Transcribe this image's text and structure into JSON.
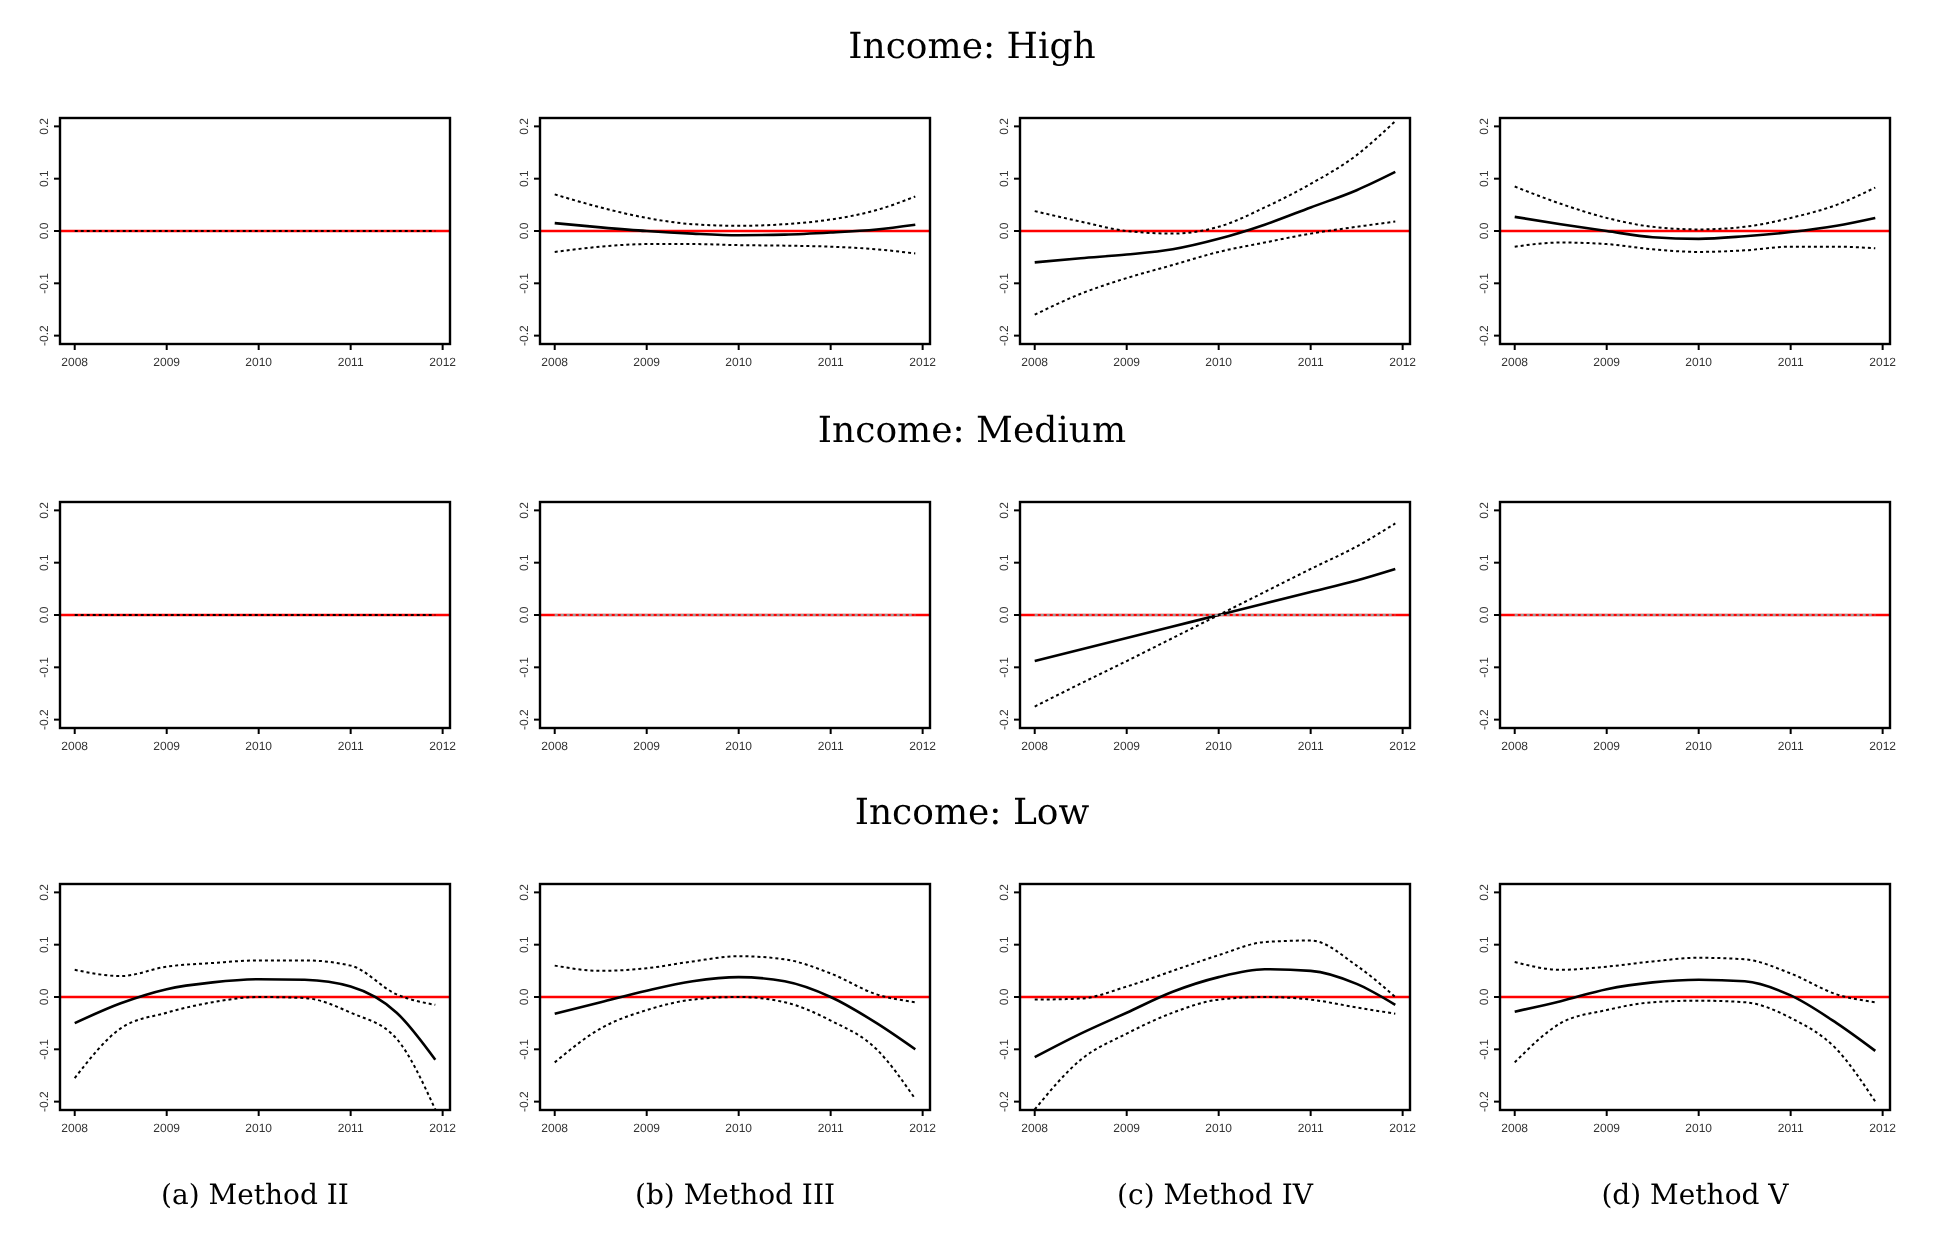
{
  "chart_data": [
    {
      "type": "other",
      "title": "Income: High"
    },
    {
      "type": "line",
      "x": [
        2008,
        2008.5,
        2009,
        2009.5,
        2010,
        2010.5,
        2011,
        2011.5,
        2011.92
      ],
      "xlim": [
        2007.84,
        2012.08
      ],
      "ylim": [
        -0.216,
        0.216
      ],
      "xticks": [
        2008,
        2009,
        2010,
        2011,
        2012
      ],
      "yticks": [
        {
          "value": -0.2,
          "label": "-0.2"
        },
        {
          "value": -0.1,
          "label": "-0.1"
        },
        {
          "value": 0,
          "label": "0.0"
        },
        {
          "value": 0.1,
          "label": "0.1"
        },
        {
          "value": 0.2,
          "label": "0.2"
        }
      ],
      "ref_lines": [
        {
          "axis": "y",
          "value": 0,
          "color": "#ff0000"
        }
      ],
      "series": [
        {
          "color": "#000000",
          "line_style": "dotted",
          "values": [
            0,
            0,
            0,
            0,
            0,
            0,
            0,
            0,
            0
          ]
        }
      ]
    },
    {
      "type": "line",
      "x": [
        2008,
        2008.5,
        2009,
        2009.5,
        2010,
        2010.5,
        2011,
        2011.5,
        2011.92
      ],
      "xlim": [
        2007.84,
        2012.08
      ],
      "ylim": [
        -0.216,
        0.216
      ],
      "xticks": [
        2008,
        2009,
        2010,
        2011,
        2012
      ],
      "yticks": [
        {
          "value": -0.2,
          "label": "-0.2"
        },
        {
          "value": -0.1,
          "label": "-0.1"
        },
        {
          "value": 0,
          "label": "0.0"
        },
        {
          "value": 0.1,
          "label": "0.1"
        },
        {
          "value": 0.2,
          "label": "0.2"
        }
      ],
      "ref_lines": [
        {
          "axis": "y",
          "value": 0,
          "color": "#ff0000"
        }
      ],
      "series": [
        {
          "color": "#000000",
          "line_style": "solid",
          "values": [
            0.015,
            0.007,
            0.0,
            -0.005,
            -0.008,
            -0.007,
            -0.003,
            0.003,
            0.012
          ]
        },
        {
          "color": "#000000",
          "line_style": "dotted",
          "values": [
            0.07,
            0.045,
            0.025,
            0.013,
            0.01,
            0.013,
            0.022,
            0.04,
            0.066
          ]
        },
        {
          "color": "#000000",
          "line_style": "dotted",
          "values": [
            -0.04,
            -0.03,
            -0.025,
            -0.025,
            -0.027,
            -0.028,
            -0.03,
            -0.035,
            -0.043
          ]
        }
      ]
    },
    {
      "type": "line",
      "x": [
        2008,
        2008.5,
        2009,
        2009.5,
        2010,
        2010.5,
        2011,
        2011.5,
        2011.92
      ],
      "xlim": [
        2007.84,
        2012.08
      ],
      "ylim": [
        -0.216,
        0.216
      ],
      "xticks": [
        2008,
        2009,
        2010,
        2011,
        2012
      ],
      "yticks": [
        {
          "value": -0.2,
          "label": "-0.2"
        },
        {
          "value": -0.1,
          "label": "-0.1"
        },
        {
          "value": 0,
          "label": "0.0"
        },
        {
          "value": 0.1,
          "label": "0.1"
        },
        {
          "value": 0.2,
          "label": "0.2"
        }
      ],
      "ref_lines": [
        {
          "axis": "y",
          "value": 0,
          "color": "#ff0000"
        }
      ],
      "series": [
        {
          "color": "#000000",
          "line_style": "solid",
          "values": [
            -0.06,
            -0.052,
            -0.045,
            -0.035,
            -0.015,
            0.012,
            0.045,
            0.078,
            0.113
          ]
        },
        {
          "color": "#000000",
          "line_style": "dotted",
          "values": [
            0.038,
            0.018,
            0.0,
            -0.005,
            0.008,
            0.045,
            0.09,
            0.145,
            0.21
          ]
        },
        {
          "color": "#000000",
          "line_style": "dotted",
          "values": [
            -0.16,
            -0.12,
            -0.09,
            -0.065,
            -0.04,
            -0.022,
            -0.005,
            0.008,
            0.018
          ]
        }
      ]
    },
    {
      "type": "line",
      "x": [
        2008,
        2008.5,
        2009,
        2009.5,
        2010,
        2010.5,
        2011,
        2011.5,
        2011.92
      ],
      "xlim": [
        2007.84,
        2012.08
      ],
      "ylim": [
        -0.216,
        0.216
      ],
      "xticks": [
        2008,
        2009,
        2010,
        2011,
        2012
      ],
      "yticks": [
        {
          "value": -0.2,
          "label": "-0.2"
        },
        {
          "value": -0.1,
          "label": "-0.1"
        },
        {
          "value": 0,
          "label": "0.0"
        },
        {
          "value": 0.1,
          "label": "0.1"
        },
        {
          "value": 0.2,
          "label": "0.2"
        }
      ],
      "ref_lines": [
        {
          "axis": "y",
          "value": 0,
          "color": "#ff0000"
        }
      ],
      "series": [
        {
          "color": "#000000",
          "line_style": "solid",
          "values": [
            0.027,
            0.013,
            0.0,
            -0.012,
            -0.015,
            -0.01,
            -0.002,
            0.01,
            0.025
          ]
        },
        {
          "color": "#000000",
          "line_style": "dotted",
          "values": [
            0.085,
            0.052,
            0.025,
            0.008,
            0.003,
            0.008,
            0.025,
            0.05,
            0.083
          ]
        },
        {
          "color": "#000000",
          "line_style": "dotted",
          "values": [
            -0.03,
            -0.022,
            -0.025,
            -0.035,
            -0.04,
            -0.037,
            -0.03,
            -0.03,
            -0.033
          ]
        }
      ]
    },
    {
      "type": "other",
      "title": "Income: Medium"
    },
    {
      "type": "line",
      "x": [
        2008,
        2008.5,
        2009,
        2009.5,
        2010,
        2010.5,
        2011,
        2011.5,
        2011.92
      ],
      "xlim": [
        2007.84,
        2012.08
      ],
      "ylim": [
        -0.216,
        0.216
      ],
      "xticks": [
        2008,
        2009,
        2010,
        2011,
        2012
      ],
      "yticks": [
        {
          "value": -0.2,
          "label": "-0.2"
        },
        {
          "value": -0.1,
          "label": "-0.1"
        },
        {
          "value": 0,
          "label": "0.0"
        },
        {
          "value": 0.1,
          "label": "0.1"
        },
        {
          "value": 0.2,
          "label": "0.2"
        }
      ],
      "ref_lines": [
        {
          "axis": "y",
          "value": 0,
          "color": "#ff0000"
        }
      ],
      "series": [
        {
          "color": "#000000",
          "line_style": "dotted",
          "values": [
            0,
            0,
            0,
            0,
            0,
            0,
            0,
            0,
            0
          ]
        }
      ]
    },
    {
      "type": "line",
      "x": [
        2008,
        2008.5,
        2009,
        2009.5,
        2010,
        2010.5,
        2011,
        2011.5,
        2011.92
      ],
      "xlim": [
        2007.84,
        2012.08
      ],
      "ylim": [
        -0.216,
        0.216
      ],
      "xticks": [
        2008,
        2009,
        2010,
        2011,
        2012
      ],
      "yticks": [
        {
          "value": -0.2,
          "label": "-0.2"
        },
        {
          "value": -0.1,
          "label": "-0.1"
        },
        {
          "value": 0,
          "label": "0.0"
        },
        {
          "value": 0.1,
          "label": "0.1"
        },
        {
          "value": 0.2,
          "label": "0.2"
        }
      ],
      "ref_lines": [
        {
          "axis": "y",
          "value": 0,
          "color": "#ff0000"
        }
      ],
      "series": [
        {
          "color": "#999999",
          "line_style": "dotted",
          "values": [
            0,
            0,
            0,
            0,
            0,
            0,
            0,
            0,
            0
          ]
        }
      ]
    },
    {
      "type": "line",
      "x": [
        2008,
        2008.5,
        2009,
        2009.5,
        2010,
        2010.5,
        2011,
        2011.5,
        2011.92
      ],
      "xlim": [
        2007.84,
        2012.08
      ],
      "ylim": [
        -0.216,
        0.216
      ],
      "xticks": [
        2008,
        2009,
        2010,
        2011,
        2012
      ],
      "yticks": [
        {
          "value": -0.2,
          "label": "-0.2"
        },
        {
          "value": -0.1,
          "label": "-0.1"
        },
        {
          "value": 0,
          "label": "0.0"
        },
        {
          "value": 0.1,
          "label": "0.1"
        },
        {
          "value": 0.2,
          "label": "0.2"
        }
      ],
      "ref_lines": [
        {
          "axis": "y",
          "value": 0,
          "color": "#ff0000"
        }
      ],
      "series": [
        {
          "color": "#000000",
          "line_style": "solid",
          "values": [
            -0.088,
            -0.066,
            -0.044,
            -0.022,
            0,
            0.022,
            0.044,
            0.066,
            0.088
          ]
        },
        {
          "color": "#000000",
          "line_style": "dotted",
          "values": [
            -0.175,
            -0.131,
            -0.088,
            -0.044,
            0,
            0.044,
            0.088,
            0.131,
            0.175
          ]
        },
        {
          "color": "#999999",
          "line_style": "dotted",
          "values": [
            0,
            0,
            0,
            0,
            0,
            0,
            0,
            0,
            0
          ]
        }
      ]
    },
    {
      "type": "line",
      "x": [
        2008,
        2008.5,
        2009,
        2009.5,
        2010,
        2010.5,
        2011,
        2011.5,
        2011.92
      ],
      "xlim": [
        2007.84,
        2012.08
      ],
      "ylim": [
        -0.216,
        0.216
      ],
      "xticks": [
        2008,
        2009,
        2010,
        2011,
        2012
      ],
      "yticks": [
        {
          "value": -0.2,
          "label": "-0.2"
        },
        {
          "value": -0.1,
          "label": "-0.1"
        },
        {
          "value": 0,
          "label": "0.0"
        },
        {
          "value": 0.1,
          "label": "0.1"
        },
        {
          "value": 0.2,
          "label": "0.2"
        }
      ],
      "ref_lines": [
        {
          "axis": "y",
          "value": 0,
          "color": "#ff0000"
        }
      ],
      "series": [
        {
          "color": "#999999",
          "line_style": "dotted",
          "values": [
            0,
            0,
            0,
            0,
            0,
            0,
            0,
            0,
            0
          ]
        }
      ]
    },
    {
      "type": "other",
      "title": "Income: Low"
    },
    {
      "type": "line",
      "xlabel": "(a) Method II",
      "x": [
        2008,
        2008.5,
        2009,
        2009.5,
        2010,
        2010.5,
        2011,
        2011.5,
        2011.92
      ],
      "xlim": [
        2007.84,
        2012.08
      ],
      "ylim": [
        -0.216,
        0.216
      ],
      "xticks": [
        2008,
        2009,
        2010,
        2011,
        2012
      ],
      "yticks": [
        {
          "value": -0.2,
          "label": "-0.2"
        },
        {
          "value": -0.1,
          "label": "-0.1"
        },
        {
          "value": 0,
          "label": "0.0"
        },
        {
          "value": 0.1,
          "label": "0.1"
        },
        {
          "value": 0.2,
          "label": "0.2"
        }
      ],
      "ref_lines": [
        {
          "axis": "y",
          "value": 0,
          "color": "#ff0000"
        }
      ],
      "series": [
        {
          "color": "#000000",
          "line_style": "solid",
          "values": [
            -0.05,
            -0.012,
            0.015,
            0.028,
            0.034,
            0.033,
            0.02,
            -0.03,
            -0.12
          ]
        },
        {
          "color": "#000000",
          "line_style": "dotted",
          "values": [
            0.052,
            0.04,
            0.058,
            0.065,
            0.07,
            0.07,
            0.06,
            0.005,
            -0.015
          ]
        },
        {
          "color": "#000000",
          "line_style": "dotted",
          "values": [
            -0.155,
            -0.06,
            -0.03,
            -0.01,
            0.0,
            -0.002,
            -0.03,
            -0.08,
            -0.215
          ]
        }
      ]
    },
    {
      "type": "line",
      "xlabel": "(b) Method III",
      "x": [
        2008,
        2008.5,
        2009,
        2009.5,
        2010,
        2010.5,
        2011,
        2011.5,
        2011.92
      ],
      "xlim": [
        2007.84,
        2012.08
      ],
      "ylim": [
        -0.216,
        0.216
      ],
      "xticks": [
        2008,
        2009,
        2010,
        2011,
        2012
      ],
      "yticks": [
        {
          "value": -0.2,
          "label": "-0.2"
        },
        {
          "value": -0.1,
          "label": "-0.1"
        },
        {
          "value": 0,
          "label": "0.0"
        },
        {
          "value": 0.1,
          "label": "0.1"
        },
        {
          "value": 0.2,
          "label": "0.2"
        }
      ],
      "ref_lines": [
        {
          "axis": "y",
          "value": 0,
          "color": "#ff0000"
        }
      ],
      "series": [
        {
          "color": "#000000",
          "line_style": "solid",
          "values": [
            -0.032,
            -0.01,
            0.012,
            0.03,
            0.038,
            0.03,
            0.0,
            -0.05,
            -0.1
          ]
        },
        {
          "color": "#000000",
          "line_style": "dotted",
          "values": [
            0.06,
            0.05,
            0.055,
            0.068,
            0.078,
            0.072,
            0.045,
            0.005,
            -0.01
          ]
        },
        {
          "color": "#000000",
          "line_style": "dotted",
          "values": [
            -0.125,
            -0.06,
            -0.025,
            -0.005,
            0.0,
            -0.01,
            -0.045,
            -0.1,
            -0.195
          ]
        }
      ]
    },
    {
      "type": "line",
      "xlabel": "(c) Method IV",
      "x": [
        2008,
        2008.5,
        2009,
        2009.5,
        2010,
        2010.5,
        2011,
        2011.5,
        2011.92
      ],
      "xlim": [
        2007.84,
        2012.08
      ],
      "ylim": [
        -0.216,
        0.216
      ],
      "xticks": [
        2008,
        2009,
        2010,
        2011,
        2012
      ],
      "yticks": [
        {
          "value": -0.2,
          "label": "-0.2"
        },
        {
          "value": -0.1,
          "label": "-0.1"
        },
        {
          "value": 0,
          "label": "0.0"
        },
        {
          "value": 0.1,
          "label": "0.1"
        },
        {
          "value": 0.2,
          "label": "0.2"
        }
      ],
      "ref_lines": [
        {
          "axis": "y",
          "value": 0,
          "color": "#ff0000"
        }
      ],
      "series": [
        {
          "color": "#000000",
          "line_style": "solid",
          "values": [
            -0.115,
            -0.07,
            -0.03,
            0.01,
            0.038,
            0.053,
            0.05,
            0.025,
            -0.015
          ]
        },
        {
          "color": "#000000",
          "line_style": "dotted",
          "values": [
            -0.005,
            -0.003,
            0.02,
            0.05,
            0.08,
            0.105,
            0.108,
            0.06,
            0.0
          ]
        },
        {
          "color": "#000000",
          "line_style": "dotted",
          "values": [
            -0.215,
            -0.12,
            -0.07,
            -0.03,
            -0.005,
            0.0,
            -0.005,
            -0.02,
            -0.032
          ]
        }
      ]
    },
    {
      "type": "line",
      "xlabel": "(d) Method V",
      "x": [
        2008,
        2008.5,
        2009,
        2009.5,
        2010,
        2010.5,
        2011,
        2011.5,
        2011.92
      ],
      "xlim": [
        2007.84,
        2012.08
      ],
      "ylim": [
        -0.216,
        0.216
      ],
      "xticks": [
        2008,
        2009,
        2010,
        2011,
        2012
      ],
      "yticks": [
        {
          "value": -0.2,
          "label": "-0.2"
        },
        {
          "value": -0.1,
          "label": "-0.1"
        },
        {
          "value": 0,
          "label": "0.0"
        },
        {
          "value": 0.1,
          "label": "0.1"
        },
        {
          "value": 0.2,
          "label": "0.2"
        }
      ],
      "ref_lines": [
        {
          "axis": "y",
          "value": 0,
          "color": "#ff0000"
        }
      ],
      "series": [
        {
          "color": "#000000",
          "line_style": "solid",
          "values": [
            -0.028,
            -0.008,
            0.015,
            0.028,
            0.033,
            0.03,
            0.003,
            -0.05,
            -0.103
          ]
        },
        {
          "color": "#000000",
          "line_style": "dotted",
          "values": [
            0.067,
            0.052,
            0.058,
            0.068,
            0.075,
            0.072,
            0.045,
            0.005,
            -0.01
          ]
        },
        {
          "color": "#000000",
          "line_style": "dotted",
          "values": [
            -0.125,
            -0.05,
            -0.025,
            -0.01,
            -0.007,
            -0.01,
            -0.04,
            -0.1,
            -0.2
          ]
        }
      ]
    }
  ]
}
